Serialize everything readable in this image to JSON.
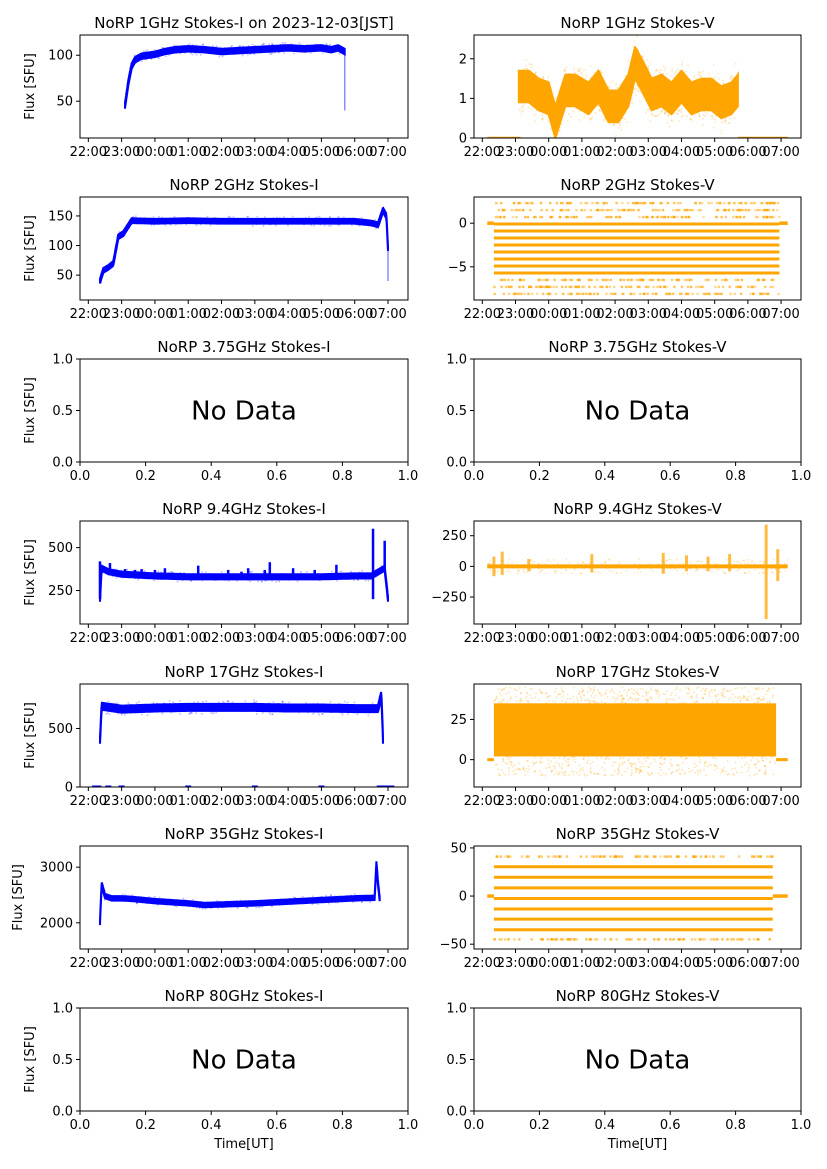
{
  "figure": {
    "date_label": "2023-12-03[JST]",
    "stokes_i_color": "#0000ff",
    "stokes_v_color": "#ffa500",
    "no_data_text": "No Data",
    "ylabel": "Flux [SFU]",
    "xlabel": "Time[UT]"
  },
  "chart_data": [
    {
      "type": "scatter",
      "row": 0,
      "col": 0,
      "title": "NoRP 1GHz Stokes-I on 2023-12-03[JST]",
      "ylabel": "Flux [SFU]",
      "xlabel": "",
      "has_data": true,
      "color": "#0000ff",
      "xlim_hours": [
        21.75,
        31.6
      ],
      "ylim": [
        10,
        122
      ],
      "xticks": [
        "22:00",
        "23:00",
        "00:00",
        "01:00",
        "02:00",
        "03:00",
        "04:00",
        "05:00",
        "06:00",
        "07:00"
      ],
      "yticks": [
        50,
        100
      ],
      "series": [
        {
          "name": "Stokes-I",
          "x_hours": [
            23.1,
            23.2,
            23.3,
            23.4,
            23.6,
            23.8,
            24.0,
            24.3,
            24.6,
            25.0,
            25.5,
            26.0,
            26.5,
            27.0,
            27.5,
            28.0,
            28.5,
            29.0,
            29.3,
            29.5,
            29.65,
            29.7
          ],
          "y": [
            45,
            70,
            88,
            95,
            99,
            100,
            101,
            104,
            106,
            107,
            106,
            104,
            105,
            106,
            107,
            108,
            107,
            108,
            106,
            108,
            105,
            104
          ],
          "spread": 3,
          "drop_at_end": 40
        }
      ]
    },
    {
      "type": "scatter",
      "row": 0,
      "col": 1,
      "title": "NoRP 1GHz Stokes-V",
      "ylabel": "",
      "xlabel": "",
      "has_data": true,
      "color": "#ffa500",
      "xlim_hours": [
        21.75,
        31.6
      ],
      "ylim": [
        0,
        2.6
      ],
      "xticks": [
        "22:00",
        "23:00",
        "00:00",
        "01:00",
        "02:00",
        "03:00",
        "04:00",
        "05:00",
        "06:00",
        "07:00"
      ],
      "yticks": [
        0,
        1,
        2
      ],
      "series": [
        {
          "name": "Stokes-V",
          "x_hours": [
            23.1,
            23.4,
            23.7,
            24.0,
            24.2,
            24.5,
            24.8,
            25.2,
            25.5,
            25.8,
            26.1,
            26.4,
            26.6,
            26.8,
            27.1,
            27.4,
            27.7,
            28.0,
            28.3,
            28.6,
            28.9,
            29.2,
            29.5,
            29.7
          ],
          "y": [
            1.3,
            1.3,
            1.1,
            1.0,
            0.4,
            1.2,
            1.2,
            1.0,
            1.3,
            0.8,
            0.8,
            1.2,
            1.9,
            1.6,
            1.1,
            1.2,
            1.0,
            1.3,
            1.0,
            1.1,
            1.1,
            0.9,
            1.0,
            1.2
          ],
          "spread": 0.4,
          "baseline_ranges_hours": [
            [
              22.15,
              23.15
            ],
            [
              29.7,
              31.2
            ]
          ],
          "baseline_value": 0
        }
      ]
    },
    {
      "type": "scatter",
      "row": 1,
      "col": 0,
      "title": "NoRP 2GHz Stokes-I",
      "ylabel": "Flux [SFU]",
      "xlabel": "",
      "has_data": true,
      "color": "#0000ff",
      "xlim_hours": [
        21.75,
        31.6
      ],
      "ylim": [
        8,
        182
      ],
      "xticks": [
        "22:00",
        "23:00",
        "00:00",
        "01:00",
        "02:00",
        "03:00",
        "04:00",
        "05:00",
        "06:00",
        "07:00"
      ],
      "yticks": [
        50,
        100,
        150
      ],
      "series": [
        {
          "name": "Stokes-I",
          "x_hours": [
            22.35,
            22.45,
            22.6,
            22.75,
            22.9,
            23.05,
            23.3,
            24.0,
            25.0,
            26.0,
            27.0,
            28.0,
            29.0,
            30.0,
            30.5,
            30.7,
            30.85,
            30.95,
            31.0
          ],
          "y": [
            40,
            58,
            63,
            70,
            115,
            120,
            142,
            141,
            142,
            141,
            141,
            141,
            141,
            141,
            138,
            135,
            160,
            150,
            95
          ],
          "spread": 4,
          "drop_at_end": 40
        }
      ]
    },
    {
      "type": "scatter",
      "row": 1,
      "col": 1,
      "title": "NoRP 2GHz Stokes-V",
      "ylabel": "",
      "xlabel": "",
      "has_data": true,
      "color": "#ffa500",
      "xlim_hours": [
        21.75,
        31.6
      ],
      "ylim": [
        -8.8,
        3
      ],
      "xticks": [
        "22:00",
        "23:00",
        "00:00",
        "01:00",
        "02:00",
        "03:00",
        "04:00",
        "05:00",
        "06:00",
        "07:00"
      ],
      "yticks": [
        0,
        -5
      ],
      "series": [
        {
          "name": "Stokes-V",
          "x_range_hours": [
            22.35,
            30.95
          ],
          "quantized_levels": [
            2.3,
            1.5,
            0.7,
            -0.1,
            -0.9,
            -1.7,
            -2.5,
            -3.3,
            -4.1,
            -4.9,
            -5.7,
            -6.5,
            -7.3,
            -8.1
          ],
          "dense_levels": [
            -0.1,
            -0.9,
            -1.7,
            -2.5,
            -3.3,
            -4.1,
            -4.9,
            -5.7
          ],
          "baseline_ranges_hours": [
            [
              22.15,
              22.35
            ],
            [
              30.95,
              31.2
            ]
          ],
          "baseline_value": 0
        }
      ]
    },
    {
      "type": "scatter",
      "row": 2,
      "col": 0,
      "title": "NoRP 3.75GHz Stokes-I",
      "ylabel": "Flux [SFU]",
      "xlabel": "",
      "has_data": false,
      "xlim": [
        0,
        1
      ],
      "ylim": [
        0,
        1
      ],
      "xticks": [
        "0.0",
        "0.2",
        "0.4",
        "0.6",
        "0.8",
        "1.0"
      ],
      "yticks": [
        "0.0",
        "0.5",
        "1.0"
      ],
      "annotation": "No Data"
    },
    {
      "type": "scatter",
      "row": 2,
      "col": 1,
      "title": "NoRP 3.75GHz Stokes-V",
      "ylabel": "",
      "xlabel": "",
      "has_data": false,
      "xlim": [
        0,
        1
      ],
      "ylim": [
        0,
        1
      ],
      "xticks": [
        "0.0",
        "0.2",
        "0.4",
        "0.6",
        "0.8",
        "1.0"
      ],
      "yticks": [
        "0.0",
        "0.5",
        "1.0"
      ],
      "annotation": "No Data"
    },
    {
      "type": "scatter",
      "row": 3,
      "col": 0,
      "title": "NoRP 9.4GHz Stokes-I",
      "ylabel": "Flux [SFU]",
      "xlabel": "",
      "has_data": true,
      "color": "#0000ff",
      "xlim_hours": [
        21.75,
        31.6
      ],
      "ylim": [
        55,
        655
      ],
      "xticks": [
        "22:00",
        "23:00",
        "00:00",
        "01:00",
        "02:00",
        "03:00",
        "04:00",
        "05:00",
        "06:00",
        "07:00"
      ],
      "yticks": [
        250,
        500
      ],
      "series": [
        {
          "name": "Stokes-I",
          "x_hours": [
            22.35,
            22.4,
            22.6,
            23.0,
            24.0,
            25.0,
            26.0,
            27.0,
            28.0,
            29.0,
            30.0,
            30.5,
            30.9,
            31.0
          ],
          "y": [
            200,
            380,
            360,
            345,
            335,
            330,
            330,
            330,
            330,
            330,
            335,
            335,
            380,
            200
          ],
          "spread": 15,
          "spikes": [
            {
              "x_hours": 22.35,
              "y": 420
            },
            {
              "x_hours": 22.65,
              "y": 410
            },
            {
              "x_hours": 23.1,
              "y": 375
            },
            {
              "x_hours": 23.4,
              "y": 370
            },
            {
              "x_hours": 23.6,
              "y": 375
            },
            {
              "x_hours": 24.0,
              "y": 370
            },
            {
              "x_hours": 24.3,
              "y": 380
            },
            {
              "x_hours": 25.3,
              "y": 395
            },
            {
              "x_hours": 26.2,
              "y": 370
            },
            {
              "x_hours": 26.6,
              "y": 360
            },
            {
              "x_hours": 26.8,
              "y": 380
            },
            {
              "x_hours": 27.3,
              "y": 370
            },
            {
              "x_hours": 27.45,
              "y": 415
            },
            {
              "x_hours": 28.15,
              "y": 380
            },
            {
              "x_hours": 28.8,
              "y": 370
            },
            {
              "x_hours": 29.45,
              "y": 400
            },
            {
              "x_hours": 30.55,
              "y": 610
            },
            {
              "x_hours": 30.9,
              "y": 540
            }
          ],
          "dips": [
            {
              "x_hours": 30.55,
              "y": 200
            },
            {
              "x_hours": 31.0,
              "y": 200
            }
          ]
        }
      ]
    },
    {
      "type": "scatter",
      "row": 3,
      "col": 1,
      "title": "NoRP 9.4GHz Stokes-V",
      "ylabel": "",
      "xlabel": "",
      "has_data": true,
      "color": "#ffa500",
      "xlim_hours": [
        21.75,
        31.6
      ],
      "ylim": [
        -470,
        370
      ],
      "xticks": [
        "22:00",
        "23:00",
        "00:00",
        "01:00",
        "02:00",
        "03:00",
        "04:00",
        "05:00",
        "06:00",
        "07:00"
      ],
      "yticks": [
        250,
        0,
        -250
      ],
      "series": [
        {
          "name": "Stokes-V",
          "x_range_hours": [
            22.15,
            31.2
          ],
          "y": 0,
          "spread": 15,
          "bursts": [
            {
              "x_hours": 22.35,
              "min": -80,
              "max": 80
            },
            {
              "x_hours": 22.6,
              "min": -70,
              "max": 120
            },
            {
              "x_hours": 23.4,
              "min": -40,
              "max": 60
            },
            {
              "x_hours": 25.3,
              "min": -50,
              "max": 100
            },
            {
              "x_hours": 27.45,
              "min": -60,
              "max": 110
            },
            {
              "x_hours": 28.15,
              "min": -40,
              "max": 90
            },
            {
              "x_hours": 28.8,
              "min": -40,
              "max": 80
            },
            {
              "x_hours": 29.45,
              "min": -40,
              "max": 100
            },
            {
              "x_hours": 30.55,
              "min": -430,
              "max": 340
            },
            {
              "x_hours": 30.9,
              "min": -120,
              "max": 140
            }
          ]
        }
      ]
    },
    {
      "type": "scatter",
      "row": 4,
      "col": 0,
      "title": "NoRP 17GHz Stokes-I",
      "ylabel": "Flux [SFU]",
      "xlabel": "",
      "has_data": true,
      "color": "#0000ff",
      "xlim_hours": [
        21.75,
        31.6
      ],
      "ylim": [
        0,
        880
      ],
      "xticks": [
        "22:00",
        "23:00",
        "00:00",
        "01:00",
        "02:00",
        "03:00",
        "04:00",
        "05:00",
        "06:00",
        "07:00"
      ],
      "yticks": [
        0,
        500
      ],
      "series": [
        {
          "name": "Stokes-I",
          "x_hours": [
            22.35,
            22.4,
            23.0,
            24.0,
            25.0,
            26.0,
            27.0,
            28.0,
            29.0,
            30.0,
            30.7,
            30.8,
            30.85
          ],
          "y": [
            400,
            690,
            665,
            675,
            680,
            680,
            680,
            675,
            675,
            670,
            670,
            790,
            400
          ],
          "spread": 30,
          "baseline_points_hours": [
            22.2,
            22.3,
            22.6,
            23.0,
            25.0,
            27.0,
            29.0,
            30.75,
            30.9,
            31.0,
            31.1
          ],
          "baseline_value": 0
        }
      ]
    },
    {
      "type": "scatter",
      "row": 4,
      "col": 1,
      "title": "NoRP 17GHz Stokes-V",
      "ylabel": "",
      "xlabel": "",
      "has_data": true,
      "color": "#ffa500",
      "xlim_hours": [
        21.75,
        31.6
      ],
      "ylim": [
        -17,
        47
      ],
      "xticks": [
        "22:00",
        "23:00",
        "00:00",
        "01:00",
        "02:00",
        "03:00",
        "04:00",
        "05:00",
        "06:00",
        "07:00"
      ],
      "yticks": [
        0,
        25
      ],
      "series": [
        {
          "name": "Stokes-V",
          "x_range_hours": [
            22.35,
            30.85
          ],
          "dense_min": 2,
          "dense_max": 35,
          "scatter_min": -10,
          "scatter_max": 45,
          "baseline_ranges_hours": [
            [
              22.15,
              22.35
            ],
            [
              30.85,
              31.2
            ]
          ],
          "baseline_value": 0
        }
      ]
    },
    {
      "type": "scatter",
      "row": 5,
      "col": 0,
      "title": "NoRP 35GHz Stokes-I",
      "ylabel": "Flux [SFU]",
      "xlabel": "",
      "has_data": true,
      "color": "#0000ff",
      "xlim_hours": [
        21.75,
        31.6
      ],
      "ylim": [
        1530,
        3380
      ],
      "xticks": [
        "22:00",
        "23:00",
        "00:00",
        "01:00",
        "02:00",
        "03:00",
        "04:00",
        "05:00",
        "06:00",
        "07:00"
      ],
      "yticks": [
        2000,
        3000
      ],
      "series": [
        {
          "name": "Stokes-I",
          "x_hours": [
            22.35,
            22.4,
            22.5,
            22.7,
            23.0,
            23.3,
            24.0,
            25.0,
            25.5,
            26.0,
            27.0,
            28.0,
            29.0,
            30.0,
            30.6,
            30.65,
            30.7,
            30.75
          ],
          "y": [
            2000,
            2700,
            2480,
            2440,
            2440,
            2430,
            2390,
            2350,
            2320,
            2330,
            2350,
            2380,
            2410,
            2440,
            2450,
            3080,
            2700,
            2430
          ],
          "spread": 40
        }
      ]
    },
    {
      "type": "scatter",
      "row": 5,
      "col": 1,
      "title": "NoRP 35GHz Stokes-V",
      "ylabel": "",
      "xlabel": "",
      "has_data": true,
      "color": "#ffa500",
      "xlim_hours": [
        21.75,
        31.6
      ],
      "ylim": [
        -55,
        52
      ],
      "xticks": [
        "22:00",
        "23:00",
        "00:00",
        "01:00",
        "02:00",
        "03:00",
        "04:00",
        "05:00",
        "06:00",
        "07:00"
      ],
      "yticks": [
        50,
        0,
        -50
      ],
      "series": [
        {
          "name": "Stokes-V",
          "x_range_hours": [
            22.35,
            30.75
          ],
          "quantized_levels": [
            41,
            30.5,
            19.5,
            8.5,
            -2.5,
            -13.5,
            -24,
            -35,
            -45
          ],
          "dense_levels": [
            30.5,
            19.5,
            8.5,
            -2.5,
            -13.5,
            -24,
            -35
          ],
          "baseline_ranges_hours": [
            [
              22.15,
              22.35
            ],
            [
              30.75,
              31.2
            ]
          ],
          "baseline_value": 0
        }
      ]
    },
    {
      "type": "scatter",
      "row": 6,
      "col": 0,
      "title": "NoRP 80GHz Stokes-I",
      "ylabel": "Flux [SFU]",
      "xlabel": "Time[UT]",
      "has_data": false,
      "xlim": [
        0,
        1
      ],
      "ylim": [
        0,
        1
      ],
      "xticks": [
        "0.0",
        "0.2",
        "0.4",
        "0.6",
        "0.8",
        "1.0"
      ],
      "yticks": [
        "0.0",
        "0.5",
        "1.0"
      ],
      "annotation": "No Data"
    },
    {
      "type": "scatter",
      "row": 6,
      "col": 1,
      "title": "NoRP 80GHz Stokes-V",
      "ylabel": "",
      "xlabel": "Time[UT]",
      "has_data": false,
      "xlim": [
        0,
        1
      ],
      "ylim": [
        0,
        1
      ],
      "xticks": [
        "0.0",
        "0.2",
        "0.4",
        "0.6",
        "0.8",
        "1.0"
      ],
      "yticks": [
        "0.0",
        "0.5",
        "1.0"
      ],
      "annotation": "No Data"
    }
  ]
}
